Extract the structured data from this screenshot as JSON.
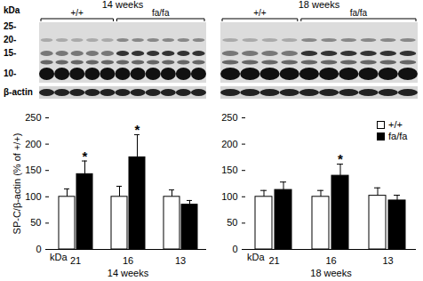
{
  "chart_data": [
    {
      "type": "bar",
      "xlabel": "14 weeks",
      "ylabel": "SP-C/β-actin (% of +/+)",
      "category_unit": "kDa",
      "categories": [
        "21",
        "16",
        "13"
      ],
      "series": [
        {
          "name": "+/+",
          "color": "#ffffff",
          "values": [
            100,
            100,
            100
          ],
          "errors": [
            15,
            20,
            13
          ]
        },
        {
          "name": "fa/fa",
          "color": "#000000",
          "values": [
            143,
            175,
            85
          ],
          "errors": [
            25,
            43,
            8
          ]
        }
      ],
      "ylim": [
        0,
        250
      ],
      "yticks": [
        0,
        50,
        100,
        150,
        200,
        250
      ],
      "annotations": [
        {
          "category": "21",
          "series": "fa/fa",
          "text": "*"
        },
        {
          "category": "16",
          "series": "fa/fa",
          "text": "*"
        }
      ]
    },
    {
      "type": "bar",
      "xlabel": "18 weeks",
      "category_unit": "kDa",
      "categories": [
        "21",
        "16",
        "13"
      ],
      "series": [
        {
          "name": "+/+",
          "color": "#ffffff",
          "values": [
            100,
            100,
            102
          ],
          "errors": [
            12,
            12,
            15
          ]
        },
        {
          "name": "fa/fa",
          "color": "#000000",
          "values": [
            113,
            140,
            93
          ],
          "errors": [
            15,
            22,
            10
          ]
        }
      ],
      "ylim": [
        0,
        250
      ],
      "yticks": [
        0,
        50,
        100,
        150,
        200,
        250
      ],
      "legend": "upper right",
      "annotations": [
        {
          "category": "16",
          "series": "fa/fa",
          "text": "*"
        }
      ]
    }
  ],
  "blot": {
    "marker_unit": "kDa",
    "markers": [
      "25-",
      "20-",
      "15-",
      "10-"
    ],
    "loading_control": "β-actin",
    "panels": [
      {
        "title": "14 weeks",
        "groups": [
          "+/+",
          "fa/fa"
        ]
      },
      {
        "title": "18 weeks",
        "groups": [
          "+/+",
          "fa/fa"
        ]
      }
    ]
  }
}
